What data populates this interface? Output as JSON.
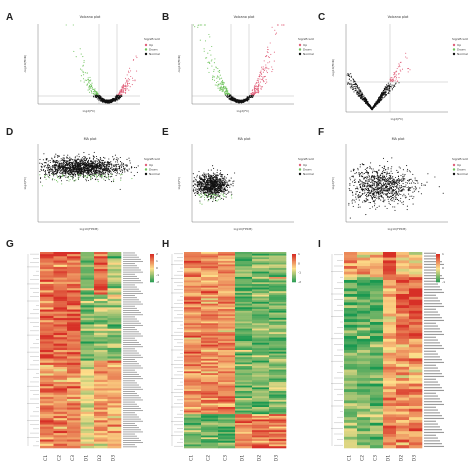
{
  "panels": {
    "A": {
      "letter": "A",
      "title": "Volcano plot",
      "xlabel": "log2(FC)",
      "ylabel": "-log10(FDR)"
    },
    "B": {
      "letter": "B",
      "title": "Volcano plot",
      "xlabel": "log2(FC)",
      "ylabel": "-log10(FDR)"
    },
    "C": {
      "letter": "C",
      "title": "Volcano plot",
      "xlabel": "log2(FC)",
      "ylabel": "-log10(FDR)"
    },
    "D": {
      "letter": "D",
      "title": "MA plot",
      "xlabel": "log10(FPKM)",
      "ylabel": "log2(FC)"
    },
    "E": {
      "letter": "E",
      "title": "MA plot",
      "xlabel": "log10(FPKM)",
      "ylabel": "log2(FC)"
    },
    "F": {
      "letter": "F",
      "title": "MA plot",
      "xlabel": "log10(FPKM)",
      "ylabel": "log2(FC)"
    },
    "G": {
      "letter": "G"
    },
    "H": {
      "letter": "H"
    },
    "I": {
      "letter": "I"
    }
  },
  "legend": {
    "title": "Significant",
    "items": [
      "Up",
      "Down",
      "Normal"
    ]
  },
  "colors": {
    "up": "#e0607a",
    "down": "#6dc25a",
    "normal": "#111111",
    "heat_low": "#1a9850",
    "heat_mid": "#fee08b",
    "heat_high": "#d73027"
  },
  "scale": {
    "ticks_g": [
      "2",
      "1",
      "0",
      "-1",
      "-2"
    ],
    "ticks_h": [
      "1",
      "0",
      "-1",
      "-2"
    ],
    "ticks_i": [
      "1",
      "0",
      "-1"
    ]
  },
  "chart_data": [
    {
      "type": "scatter",
      "panel": "A",
      "title": "Volcano plot",
      "xlabel": "log2(FC)",
      "ylabel": "-log10(FDR)",
      "xlim": [
        -10,
        10
      ],
      "ylim": [
        0,
        40
      ],
      "series": [
        {
          "name": "Up"
        },
        {
          "name": "Down"
        },
        {
          "name": "Normal"
        }
      ]
    },
    {
      "type": "scatter",
      "panel": "B",
      "title": "Volcano plot",
      "xlabel": "log2(FC)",
      "ylabel": "-log10(FDR)",
      "xlim": [
        -10,
        10
      ],
      "ylim": [
        0,
        40
      ],
      "series": [
        {
          "name": "Up"
        },
        {
          "name": "Down"
        },
        {
          "name": "Normal"
        }
      ]
    },
    {
      "type": "scatter",
      "panel": "C",
      "title": "Volcano plot",
      "xlabel": "log2(FC)",
      "ylabel": "-log10(FDR)",
      "xlim": [
        -10,
        10
      ],
      "ylim": [
        0,
        40
      ],
      "series": [
        {
          "name": "Up"
        },
        {
          "name": "Down"
        },
        {
          "name": "Normal"
        }
      ]
    },
    {
      "type": "scatter",
      "panel": "D",
      "title": "MA plot",
      "xlabel": "log10(FPKM)",
      "ylabel": "log2(FC)",
      "xlim": [
        -2,
        4
      ],
      "ylim": [
        -10,
        10
      ],
      "series": [
        {
          "name": "Up"
        },
        {
          "name": "Down"
        },
        {
          "name": "Normal"
        }
      ]
    },
    {
      "type": "scatter",
      "panel": "E",
      "title": "MA plot",
      "xlabel": "log10(FPKM)",
      "ylabel": "log2(FC)",
      "xlim": [
        -2,
        4
      ],
      "ylim": [
        -10,
        10
      ],
      "series": [
        {
          "name": "Up"
        },
        {
          "name": "Down"
        },
        {
          "name": "Normal"
        }
      ]
    },
    {
      "type": "scatter",
      "panel": "F",
      "title": "MA plot",
      "xlabel": "log10(FPKM)",
      "ylabel": "log2(FC)",
      "xlim": [
        -2,
        4
      ],
      "ylim": [
        -10,
        10
      ],
      "series": [
        {
          "name": "Up"
        },
        {
          "name": "Down"
        },
        {
          "name": "Normal"
        }
      ]
    },
    {
      "type": "heatmap",
      "panel": "G",
      "columns": [
        "C1",
        "C2",
        "C3",
        "D1",
        "D2",
        "D3"
      ],
      "scale": [
        -2,
        2
      ],
      "legend_ticks": [
        "2",
        "1",
        "0",
        "-1",
        "-2"
      ]
    },
    {
      "type": "heatmap",
      "panel": "H",
      "columns": [
        "C1",
        "C2",
        "C3",
        "D1",
        "D2",
        "D3"
      ],
      "scale": [
        -2,
        1
      ],
      "legend_ticks": [
        "1",
        "0",
        "-1",
        "-2"
      ]
    },
    {
      "type": "heatmap",
      "panel": "I",
      "columns": [
        "C1",
        "C2",
        "C3",
        "D1",
        "D2",
        "D3"
      ],
      "scale": [
        -1,
        1
      ],
      "legend_ticks": [
        "1",
        "0",
        "-1"
      ]
    }
  ]
}
